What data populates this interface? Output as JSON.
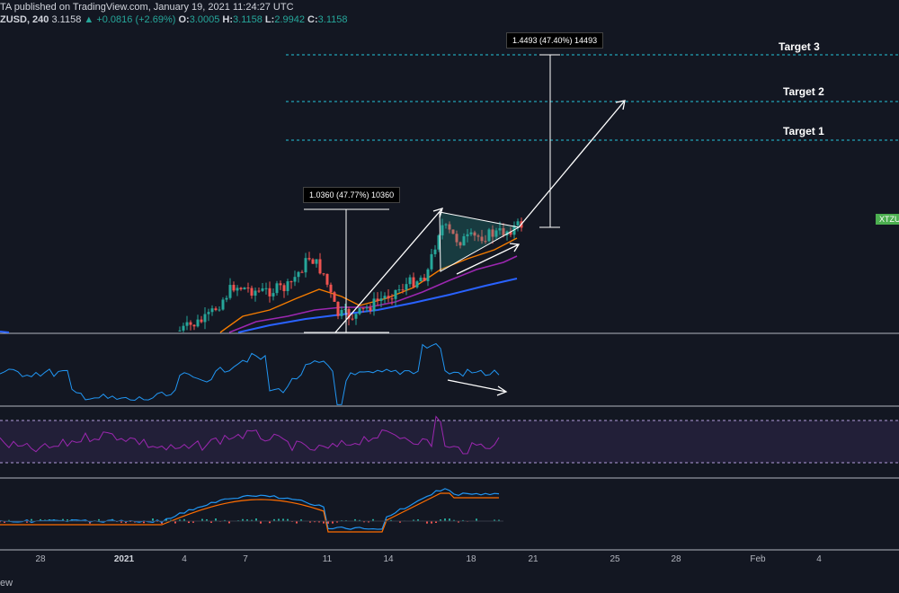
{
  "header": {
    "line1": "TA published on TradingView.com, January 19, 2021 11:24:27 UTC",
    "symbol": "ZUSD, 240",
    "price": "3.1158",
    "change": "+0.0816 (+2.69%)",
    "o_label": "O:",
    "o_value": "3.0005",
    "h_label": "H:",
    "h_value": "3.1158",
    "l_label": "L:",
    "l_value": "2.9942",
    "c_label": "C:",
    "c_value": "3.1158"
  },
  "annotations": {
    "target1": "Target 1",
    "target2": "Target 2",
    "target3": "Target 3",
    "measure_small": "1.0360 (47.77%) 10360",
    "measure_large": "1.4493 (47.40%) 14493",
    "price_badge": "XTZU"
  },
  "footer": {
    "text": "ew"
  },
  "colors": {
    "background": "#131722",
    "up": "#26a69a",
    "down": "#ef5350",
    "rsi": "#9c27b0",
    "ema_orange": "#f57c00",
    "ema_purple": "#9c27b0",
    "ema_blue": "#2962ff",
    "macd": "#2196f3",
    "signal": "#ff6d00",
    "target_line": "#26c6da"
  },
  "chart_data": {
    "type": "candlestick",
    "timeframe": "240",
    "x_tick_labels": [
      "28",
      "2021",
      "4",
      "7",
      "11",
      "14",
      "18",
      "21",
      "25",
      "28",
      "Feb",
      "4"
    ],
    "last_price": 3.1158,
    "target_labels": [
      "Target 1",
      "Target 2",
      "Target 3"
    ],
    "measurements": [
      "1.0360 (47.77%) 10360",
      "1.4493 (47.40%) 14493"
    ],
    "panes": [
      "price",
      "oscillator",
      "rsi",
      "macd"
    ],
    "pattern": "symmetrical triangle"
  }
}
